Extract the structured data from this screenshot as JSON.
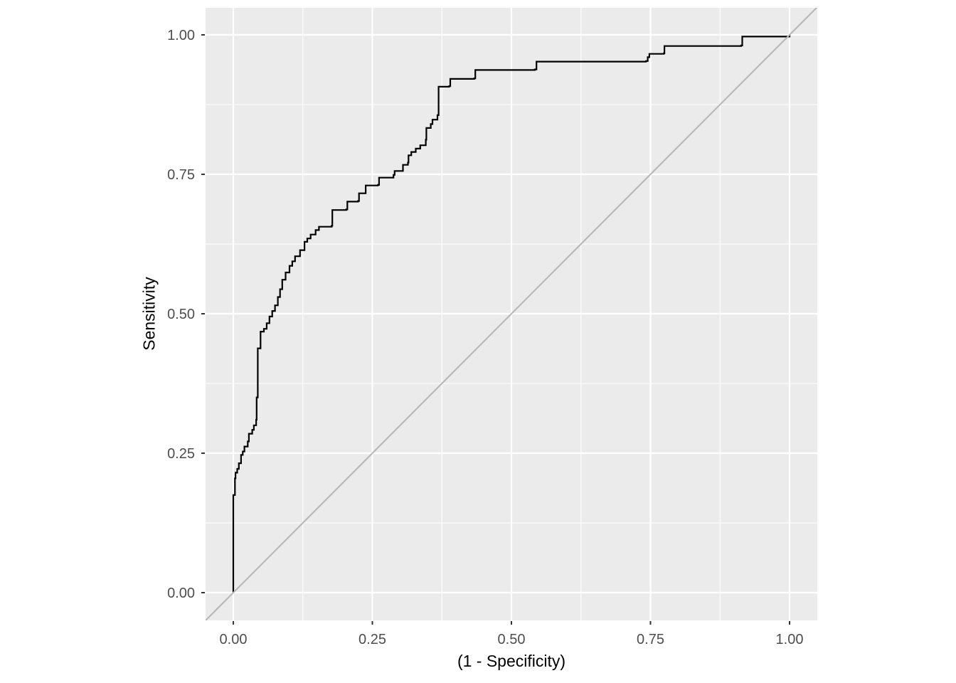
{
  "figure": {
    "background": "#FFFFFF",
    "panel_bg": "#EBEBEB",
    "grid_color": "#FFFFFF",
    "tick_color": "#333333",
    "tick_label_color": "#4D4D4D",
    "axis_title_color": "#000000",
    "curve_color": "#000000",
    "diagonal_color": "#B5B5B5"
  },
  "chart_data": {
    "type": "line",
    "subtype": "roc-step-curve",
    "title": "",
    "xlabel": "(1 - Specificity)",
    "ylabel": "Sensitivity",
    "xlim": [
      -0.05,
      1.05
    ],
    "ylim": [
      -0.05,
      1.05
    ],
    "grid": "on",
    "legend": "none",
    "x_ticks": {
      "values": [
        0,
        0.25,
        0.5,
        0.75,
        1
      ],
      "labels": [
        "0.00",
        "0.25",
        "0.50",
        "0.75",
        "1.00"
      ]
    },
    "y_ticks": {
      "values": [
        0,
        0.25,
        0.5,
        0.75,
        1
      ],
      "labels": [
        "0.00",
        "0.25",
        "0.50",
        "0.75",
        "1.00"
      ]
    },
    "x_minor": [
      0.125,
      0.375,
      0.625,
      0.875
    ],
    "y_minor": [
      0.125,
      0.375,
      0.625,
      0.875
    ],
    "series": [
      {
        "name": "ROC curve",
        "style": "step",
        "color": "#000000",
        "points": [
          [
            0.0,
            0.0
          ],
          [
            0.0,
            0.175
          ],
          [
            0.003,
            0.205
          ],
          [
            0.004,
            0.215
          ],
          [
            0.007,
            0.222
          ],
          [
            0.01,
            0.232
          ],
          [
            0.014,
            0.247
          ],
          [
            0.017,
            0.253
          ],
          [
            0.02,
            0.262
          ],
          [
            0.026,
            0.271
          ],
          [
            0.028,
            0.285
          ],
          [
            0.034,
            0.292
          ],
          [
            0.037,
            0.3
          ],
          [
            0.041,
            0.31
          ],
          [
            0.042,
            0.35
          ],
          [
            0.044,
            0.438
          ],
          [
            0.049,
            0.468
          ],
          [
            0.055,
            0.473
          ],
          [
            0.06,
            0.483
          ],
          [
            0.065,
            0.495
          ],
          [
            0.07,
            0.505
          ],
          [
            0.075,
            0.515
          ],
          [
            0.08,
            0.53
          ],
          [
            0.084,
            0.544
          ],
          [
            0.088,
            0.561
          ],
          [
            0.094,
            0.574
          ],
          [
            0.101,
            0.586
          ],
          [
            0.106,
            0.594
          ],
          [
            0.111,
            0.603
          ],
          [
            0.12,
            0.614
          ],
          [
            0.128,
            0.629
          ],
          [
            0.133,
            0.635
          ],
          [
            0.139,
            0.642
          ],
          [
            0.148,
            0.65
          ],
          [
            0.154,
            0.656
          ],
          [
            0.177,
            0.658
          ],
          [
            0.178,
            0.686
          ],
          [
            0.203,
            0.687
          ],
          [
            0.205,
            0.701
          ],
          [
            0.224,
            0.702
          ],
          [
            0.226,
            0.716
          ],
          [
            0.238,
            0.73
          ],
          [
            0.26,
            0.731
          ],
          [
            0.262,
            0.744
          ],
          [
            0.288,
            0.749
          ],
          [
            0.29,
            0.756
          ],
          [
            0.305,
            0.767
          ],
          [
            0.314,
            0.771
          ],
          [
            0.315,
            0.784
          ],
          [
            0.32,
            0.79
          ],
          [
            0.328,
            0.796
          ],
          [
            0.336,
            0.802
          ],
          [
            0.346,
            0.812
          ],
          [
            0.347,
            0.833
          ],
          [
            0.355,
            0.84
          ],
          [
            0.358,
            0.848
          ],
          [
            0.367,
            0.856
          ],
          [
            0.369,
            0.907
          ],
          [
            0.388,
            0.908
          ],
          [
            0.39,
            0.921
          ],
          [
            0.433,
            0.922
          ],
          [
            0.435,
            0.937
          ],
          [
            0.542,
            0.938
          ],
          [
            0.545,
            0.952
          ],
          [
            0.742,
            0.953
          ],
          [
            0.745,
            0.96
          ],
          [
            0.748,
            0.966
          ],
          [
            0.774,
            0.967
          ],
          [
            0.775,
            0.98
          ],
          [
            0.913,
            0.981
          ],
          [
            0.915,
            0.997
          ],
          [
            1.0,
            1.0
          ]
        ]
      },
      {
        "name": "chance diagonal",
        "style": "straight",
        "color": "#B5B5B5",
        "points": [
          [
            -0.05,
            -0.05
          ],
          [
            1.05,
            1.05
          ]
        ]
      }
    ]
  }
}
